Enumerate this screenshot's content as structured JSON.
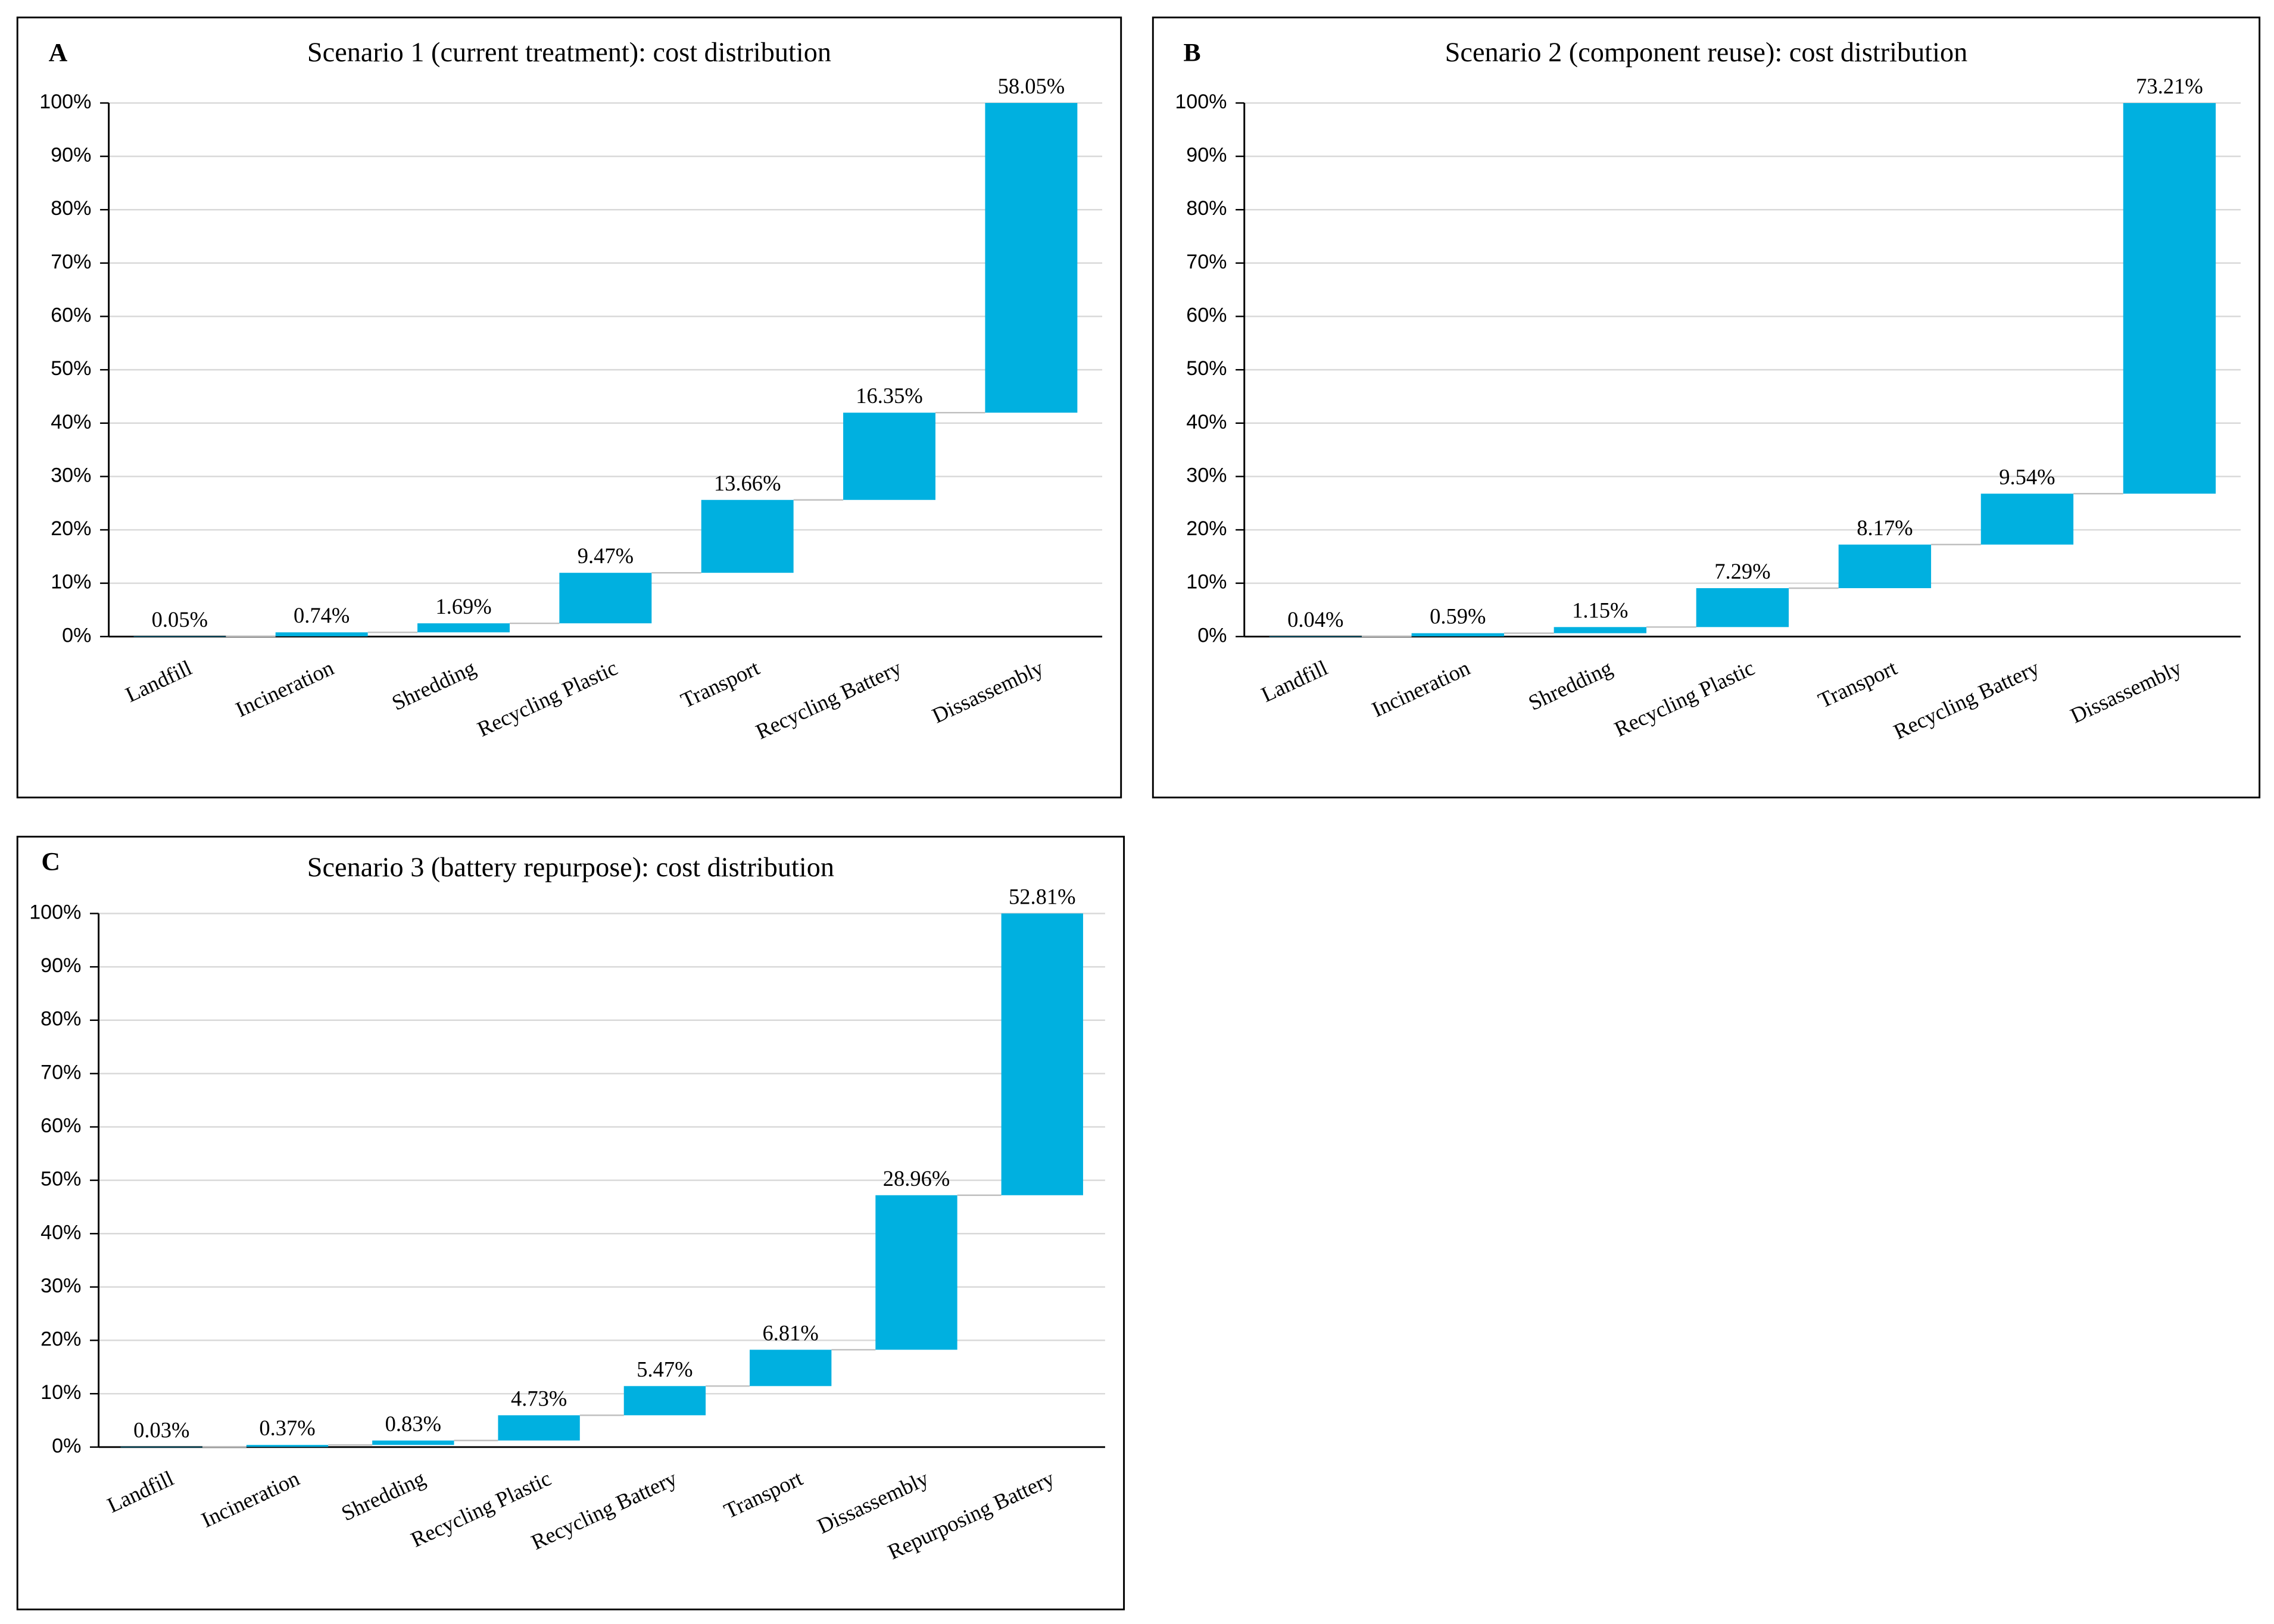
{
  "chart_data": [
    {
      "type": "waterfall",
      "panel": "A",
      "title": "Scenario 1 (current treatment): cost distribution",
      "categories": [
        "Landfill",
        "Incineration",
        "Shredding",
        "Recycling Plastic",
        "Transport",
        "Recycling Battery",
        "Dissassembly"
      ],
      "values": [
        0.05,
        0.74,
        1.69,
        9.47,
        13.66,
        16.35,
        58.05
      ],
      "value_labels": [
        "0.05%",
        "0.74%",
        "1.69%",
        "9.47%",
        "13.66%",
        "16.35%",
        "58.05%"
      ],
      "color": "#00b0e0",
      "grid": true,
      "ylim": [
        0,
        100
      ],
      "yticks": [
        {
          "value": 0,
          "label": "0%"
        },
        {
          "value": 10,
          "label": "10%"
        },
        {
          "value": 20,
          "label": "20%"
        },
        {
          "value": 30,
          "label": "30%"
        },
        {
          "value": 40,
          "label": "40%"
        },
        {
          "value": 50,
          "label": "50%"
        },
        {
          "value": 60,
          "label": "60%"
        },
        {
          "value": 70,
          "label": "70%"
        },
        {
          "value": 80,
          "label": "80%"
        },
        {
          "value": 90,
          "label": "90%"
        },
        {
          "value": 100,
          "label": "100%"
        }
      ]
    },
    {
      "type": "waterfall",
      "panel": "B",
      "title": "Scenario 2 (component reuse): cost distribution",
      "categories": [
        "Landfill",
        "Incineration",
        "Shredding",
        "Recycling Plastic",
        "Transport",
        "Recycling Battery",
        "Dissassembly"
      ],
      "values": [
        0.04,
        0.59,
        1.15,
        7.29,
        8.17,
        9.54,
        73.21
      ],
      "value_labels": [
        "0.04%",
        "0.59%",
        "1.15%",
        "7.29%",
        "8.17%",
        "9.54%",
        "73.21%"
      ],
      "color": "#00b0e0",
      "grid": true,
      "ylim": [
        0,
        100
      ],
      "yticks": [
        {
          "value": 0,
          "label": "0%"
        },
        {
          "value": 10,
          "label": "10%"
        },
        {
          "value": 20,
          "label": "20%"
        },
        {
          "value": 30,
          "label": "30%"
        },
        {
          "value": 40,
          "label": "40%"
        },
        {
          "value": 50,
          "label": "50%"
        },
        {
          "value": 60,
          "label": "60%"
        },
        {
          "value": 70,
          "label": "70%"
        },
        {
          "value": 80,
          "label": "80%"
        },
        {
          "value": 90,
          "label": "90%"
        },
        {
          "value": 100,
          "label": "100%"
        }
      ]
    },
    {
      "type": "waterfall",
      "panel": "C",
      "title": "Scenario 3 (battery repurpose): cost distribution",
      "categories": [
        "Landfill",
        "Incineration",
        "Shredding",
        "Recycling Plastic",
        "Recycling Battery",
        "Transport",
        "Dissassembly",
        "Repurposing Battery"
      ],
      "values": [
        0.03,
        0.37,
        0.83,
        4.73,
        5.47,
        6.81,
        28.96,
        52.81
      ],
      "value_labels": [
        "0.03%",
        "0.37%",
        "0.83%",
        "4.73%",
        "5.47%",
        "6.81%",
        "28.96%",
        "52.81%"
      ],
      "color": "#00b0e0",
      "grid": true,
      "ylim": [
        0,
        100
      ],
      "yticks": [
        {
          "value": 0,
          "label": "0%"
        },
        {
          "value": 10,
          "label": "10%"
        },
        {
          "value": 20,
          "label": "20%"
        },
        {
          "value": 30,
          "label": "30%"
        },
        {
          "value": 40,
          "label": "40%"
        },
        {
          "value": 50,
          "label": "50%"
        },
        {
          "value": 60,
          "label": "60%"
        },
        {
          "value": 70,
          "label": "70%"
        },
        {
          "value": 80,
          "label": "80%"
        },
        {
          "value": 90,
          "label": "90%"
        },
        {
          "value": 100,
          "label": "100%"
        }
      ]
    }
  ]
}
